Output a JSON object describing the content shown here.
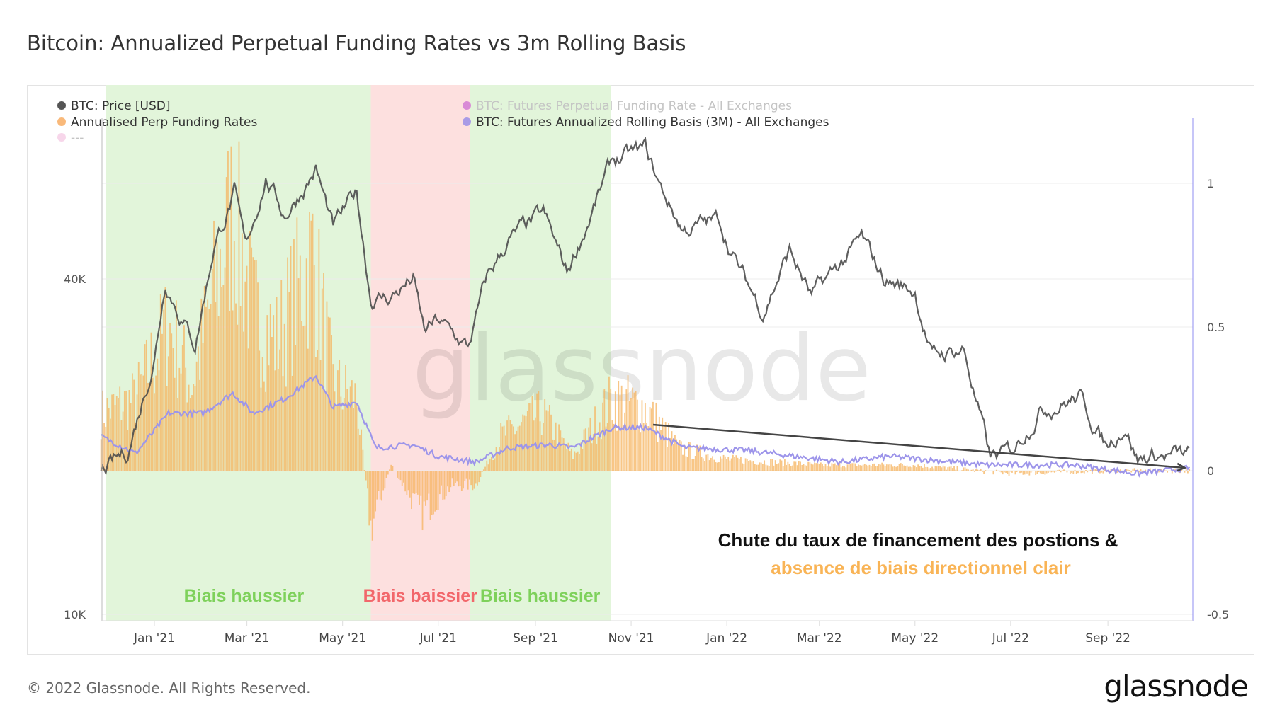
{
  "chart_data": {
    "type": "line",
    "title": "Bitcoin: Annualized Perpetual Funding Rates vs 3m Rolling Basis",
    "legend": [
      {
        "label": "BTC: Price [USD]",
        "color": "#555555",
        "muted": false
      },
      {
        "label": "Annualised Perp Funding Rates",
        "color": "#f9b97a",
        "muted": false
      },
      {
        "label": "---",
        "color": "#f7d6ea",
        "muted": true
      },
      {
        "label": "BTC: Futures Perpetual Funding Rate - All Exchanges",
        "color": "#d98ad6",
        "muted": true
      },
      {
        "label": "BTC: Futures Annualized Rolling Basis (3M) - All Exchanges",
        "color": "#a99be6",
        "muted": false
      }
    ],
    "left_axis": {
      "scale": "log",
      "ticks": [
        {
          "value": 40000,
          "label": "40K"
        },
        {
          "value": 10000,
          "label": "10K"
        }
      ]
    },
    "right_axis": {
      "ticks": [
        {
          "value": 1,
          "label": "1"
        },
        {
          "value": 0.5,
          "label": "0.5"
        },
        {
          "value": 0,
          "label": "0"
        },
        {
          "value": -0.5,
          "label": "-0.5"
        }
      ]
    },
    "x_ticks": [
      {
        "date": "2021-01-01",
        "label": "Jan '21"
      },
      {
        "date": "2021-03-01",
        "label": "Mar '21"
      },
      {
        "date": "2021-05-01",
        "label": "May '21"
      },
      {
        "date": "2021-07-01",
        "label": "Jul '21"
      },
      {
        "date": "2021-09-01",
        "label": "Sep '21"
      },
      {
        "date": "2021-11-01",
        "label": "Nov '21"
      },
      {
        "date": "2022-01-01",
        "label": "Jan '22"
      },
      {
        "date": "2022-03-01",
        "label": "Mar '22"
      },
      {
        "date": "2022-05-01",
        "label": "May '22"
      },
      {
        "date": "2022-07-01",
        "label": "Jul '22"
      },
      {
        "date": "2022-09-01",
        "label": "Sep '22"
      }
    ],
    "price": [
      [
        "2020-11-28",
        18000
      ],
      [
        "2020-12-15",
        19500
      ],
      [
        "2021-01-01",
        29000
      ],
      [
        "2021-01-08",
        40000
      ],
      [
        "2021-01-15",
        36000
      ],
      [
        "2021-01-27",
        30500
      ],
      [
        "2021-02-08",
        46000
      ],
      [
        "2021-02-21",
        57000
      ],
      [
        "2021-02-28",
        45000
      ],
      [
        "2021-03-13",
        61000
      ],
      [
        "2021-03-25",
        52000
      ],
      [
        "2021-04-14",
        63000
      ],
      [
        "2021-04-25",
        49000
      ],
      [
        "2021-05-10",
        57000
      ],
      [
        "2021-05-19",
        37000
      ],
      [
        "2021-05-31",
        37000
      ],
      [
        "2021-06-15",
        40000
      ],
      [
        "2021-06-22",
        32000
      ],
      [
        "2021-07-01",
        33500
      ],
      [
        "2021-07-20",
        30000
      ],
      [
        "2021-08-01",
        40000
      ],
      [
        "2021-08-15",
        47000
      ],
      [
        "2021-09-06",
        52000
      ],
      [
        "2021-09-21",
        41000
      ],
      [
        "2021-10-01",
        48000
      ],
      [
        "2021-10-20",
        65000
      ],
      [
        "2021-11-10",
        68000
      ],
      [
        "2021-11-20",
        58000
      ],
      [
        "2021-12-04",
        49000
      ],
      [
        "2021-12-27",
        51000
      ],
      [
        "2022-01-10",
        41000
      ],
      [
        "2022-01-24",
        35000
      ],
      [
        "2022-02-10",
        45000
      ],
      [
        "2022-02-24",
        37000
      ],
      [
        "2022-03-28",
        47000
      ],
      [
        "2022-04-11",
        40000
      ],
      [
        "2022-05-01",
        38000
      ],
      [
        "2022-05-12",
        29000
      ],
      [
        "2022-06-01",
        30000
      ],
      [
        "2022-06-18",
        19000
      ],
      [
        "2022-07-01",
        19500
      ],
      [
        "2022-07-20",
        23500
      ],
      [
        "2022-08-14",
        24500
      ],
      [
        "2022-08-31",
        20000
      ],
      [
        "2022-09-12",
        22000
      ],
      [
        "2022-09-20",
        19000
      ],
      [
        "2022-10-01",
        19300
      ],
      [
        "2022-10-23",
        19200
      ]
    ],
    "funding": [
      [
        "2020-11-28",
        0.2
      ],
      [
        "2020-12-20",
        0.25
      ],
      [
        "2021-01-10",
        0.5
      ],
      [
        "2021-01-25",
        0.3
      ],
      [
        "2021-02-20",
        0.9
      ],
      [
        "2021-03-05",
        0.55
      ],
      [
        "2021-03-20",
        0.45
      ],
      [
        "2021-04-12",
        0.75
      ],
      [
        "2021-04-25",
        0.3
      ],
      [
        "2021-05-10",
        0.25
      ],
      [
        "2021-05-19",
        -0.2
      ],
      [
        "2021-06-01",
        0.02
      ],
      [
        "2021-06-20",
        -0.15
      ],
      [
        "2021-07-10",
        -0.05
      ],
      [
        "2021-07-25",
        -0.05
      ],
      [
        "2021-08-10",
        0.12
      ],
      [
        "2021-09-05",
        0.2
      ],
      [
        "2021-09-25",
        0.05
      ],
      [
        "2021-10-20",
        0.25
      ],
      [
        "2021-11-10",
        0.22
      ],
      [
        "2021-12-01",
        0.08
      ],
      [
        "2022-01-01",
        0.04
      ],
      [
        "2022-03-01",
        0.02
      ],
      [
        "2022-05-01",
        0.02
      ],
      [
        "2022-07-01",
        -0.01
      ],
      [
        "2022-09-01",
        0.0
      ],
      [
        "2022-10-23",
        0.0
      ]
    ],
    "basis": [
      [
        "2020-11-28",
        0.12
      ],
      [
        "2020-12-20",
        0.06
      ],
      [
        "2021-01-10",
        0.2
      ],
      [
        "2021-02-01",
        0.2
      ],
      [
        "2021-02-20",
        0.27
      ],
      [
        "2021-03-05",
        0.2
      ],
      [
        "2021-03-25",
        0.25
      ],
      [
        "2021-04-14",
        0.33
      ],
      [
        "2021-04-25",
        0.22
      ],
      [
        "2021-05-10",
        0.24
      ],
      [
        "2021-05-22",
        0.08
      ],
      [
        "2021-06-15",
        0.09
      ],
      [
        "2021-07-01",
        0.05
      ],
      [
        "2021-07-25",
        0.03
      ],
      [
        "2021-08-15",
        0.08
      ],
      [
        "2021-09-10",
        0.09
      ],
      [
        "2021-09-25",
        0.08
      ],
      [
        "2021-10-20",
        0.15
      ],
      [
        "2021-11-10",
        0.15
      ],
      [
        "2021-12-05",
        0.08
      ],
      [
        "2022-01-15",
        0.07
      ],
      [
        "2022-03-15",
        0.03
      ],
      [
        "2022-04-15",
        0.05
      ],
      [
        "2022-06-15",
        0.02
      ],
      [
        "2022-08-10",
        0.02
      ],
      [
        "2022-09-20",
        -0.01
      ],
      [
        "2022-10-23",
        0.01
      ]
    ],
    "regions": [
      {
        "start": "2020-12-01",
        "end": "2021-05-19",
        "label": "Biais haussier",
        "fill": "#e2f5da",
        "text_color": "#7ed15b"
      },
      {
        "start": "2021-05-19",
        "end": "2021-07-21",
        "label": "Biais baissier",
        "fill": "#fde0df",
        "text_color": "#f2676b"
      },
      {
        "start": "2021-07-21",
        "end": "2021-10-19",
        "label": "Biais haussier",
        "fill": "#e2f5da",
        "text_color": "#7ed15b"
      }
    ],
    "trend_arrow": {
      "start": [
        "2021-11-15",
        0.16
      ],
      "end": [
        "2022-10-20",
        0.01
      ]
    },
    "annotation": {
      "line1": "Chute du taux de financement des postions &",
      "line2": "absence de biais directionnel clair",
      "line1_color": "#111111",
      "line2_color": "#f9b456"
    },
    "watermark": "glassnode"
  },
  "footer": {
    "copyright": "© 2022 Glassnode. All Rights Reserved.",
    "logo": "glassnode"
  }
}
